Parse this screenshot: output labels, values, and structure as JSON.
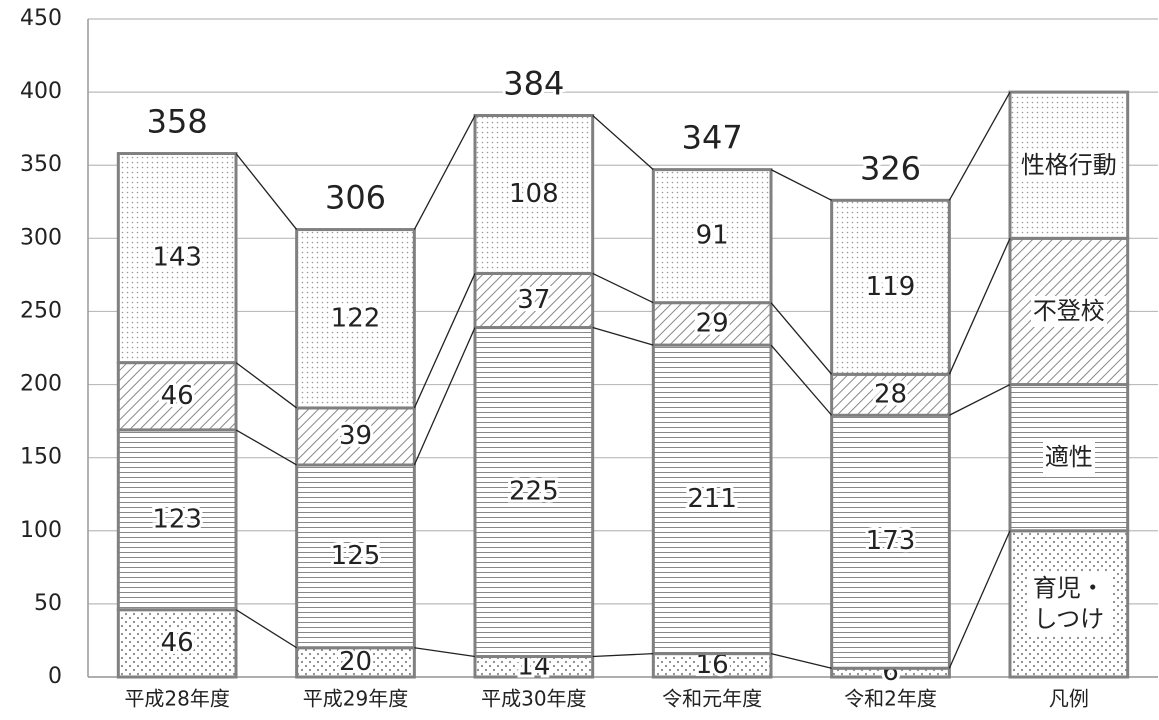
{
  "chart_data": {
    "type": "stacked_bar",
    "categories": [
      "平成28年度",
      "平成29年度",
      "平成30年度",
      "令和元年度",
      "令和2年度"
    ],
    "series": [
      {
        "name": "育児・しつけ",
        "color": "#808080",
        "pattern": "dots",
        "values": [
          46,
          20,
          14,
          16,
          6
        ]
      },
      {
        "name": "適性",
        "color": "#808080",
        "pattern": "hlines",
        "values": [
          123,
          125,
          225,
          211,
          173
        ]
      },
      {
        "name": "不登校",
        "color": "#808080",
        "pattern": "hatch",
        "values": [
          46,
          39,
          37,
          29,
          28
        ]
      },
      {
        "name": "性格行動",
        "color": "#808080",
        "pattern": "finedots",
        "values": [
          143,
          122,
          108,
          91,
          119
        ]
      }
    ],
    "totals": [
      358,
      306,
      384,
      347,
      326
    ],
    "legend": {
      "title": "凡例"
    },
    "ylim": [
      0,
      450
    ],
    "yticks": [
      0,
      50,
      100,
      150,
      200,
      250,
      300,
      350,
      400,
      450
    ],
    "grid": true
  }
}
